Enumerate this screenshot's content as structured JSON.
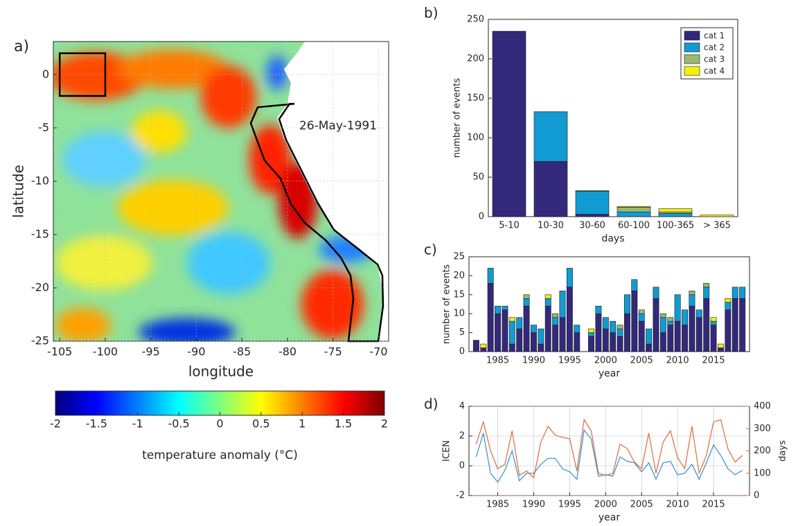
{
  "chart_data": [
    {
      "type": "map",
      "panel_label": "a)",
      "xlabel": "longitude",
      "ylabel": "latitude",
      "xlim": [
        -105.7,
        -68.9
      ],
      "ylim": [
        -25,
        3.1
      ],
      "xticks": [
        -105,
        -100,
        -95,
        -90,
        -85,
        -80,
        -75,
        -70
      ],
      "yticks": [
        -25,
        -20,
        -15,
        -10,
        -5,
        0
      ],
      "grid": true,
      "annotation": "26-May-1991",
      "box": {
        "lon": [
          -105,
          -100
        ],
        "lat": [
          -2,
          2
        ]
      },
      "colorbar": {
        "label": "temperature anomaly (°C)",
        "lim": [
          -2,
          2
        ],
        "ticks": [
          -2,
          -1.5,
          -1,
          -0.5,
          0,
          0.5,
          1,
          1.5,
          2
        ]
      }
    },
    {
      "type": "stacked-bar",
      "panel_label": "b)",
      "xlabel": "days",
      "ylabel": "number of events",
      "categories": [
        "5-10",
        "10-30",
        "30-60",
        "60-100",
        "100-365",
        "> 365"
      ],
      "series": [
        {
          "name": "cat 1",
          "color": "#33297b",
          "values": [
            235,
            70,
            3,
            0,
            0,
            0
          ]
        },
        {
          "name": "cat 2",
          "color": "#129bd2",
          "values": [
            0,
            63,
            29,
            6,
            4,
            0
          ]
        },
        {
          "name": "cat 3",
          "color": "#98b872",
          "values": [
            0,
            0,
            1,
            6,
            2,
            0
          ]
        },
        {
          "name": "cat 4",
          "color": "#f5ef0a",
          "values": [
            0,
            0,
            0,
            1,
            4,
            2
          ]
        }
      ],
      "ylim": [
        0,
        250
      ],
      "yticks": [
        0,
        50,
        100,
        150,
        200,
        250
      ],
      "legend": "upper right"
    },
    {
      "type": "stacked-bar",
      "panel_label": "c)",
      "xlabel": "year",
      "ylabel": "number of events",
      "x": [
        1982,
        1983,
        1984,
        1985,
        1986,
        1987,
        1988,
        1989,
        1990,
        1991,
        1992,
        1993,
        1994,
        1995,
        1996,
        1997,
        1998,
        1999,
        2000,
        2001,
        2002,
        2003,
        2004,
        2005,
        2006,
        2007,
        2008,
        2009,
        2010,
        2011,
        2012,
        2013,
        2014,
        2015,
        2016,
        2017,
        2018,
        2019
      ],
      "series": [
        {
          "color": "#33297b",
          "values": [
            3,
            1,
            18,
            10,
            11,
            2,
            6,
            12,
            5,
            2,
            12,
            7,
            9,
            17,
            5,
            0,
            4,
            10,
            6,
            5,
            4,
            10,
            16,
            8,
            2,
            14,
            5,
            7,
            8,
            7,
            12,
            9,
            14,
            7,
            1,
            11,
            14,
            14
          ]
        },
        {
          "color": "#129bd2",
          "values": [
            0,
            0,
            4,
            2,
            1,
            6,
            3,
            2,
            2,
            4,
            2,
            2,
            7,
            5,
            2,
            0,
            1,
            2,
            3,
            3,
            2,
            5,
            3,
            2,
            4,
            3,
            4,
            1,
            7,
            4,
            3,
            2,
            3,
            1,
            0,
            2,
            3,
            3
          ]
        },
        {
          "color": "#98b872",
          "values": [
            0,
            0,
            0,
            0,
            0,
            0,
            0,
            1,
            0,
            0,
            0,
            1,
            0,
            0,
            0,
            0,
            0,
            0,
            0,
            0,
            1,
            0,
            0,
            1,
            0,
            0,
            1,
            1,
            0,
            0,
            1,
            0,
            1,
            0,
            0,
            0,
            0,
            0
          ]
        },
        {
          "color": "#f5ef0a",
          "values": [
            0,
            1,
            0,
            0,
            0,
            1,
            0,
            0,
            0,
            0,
            1,
            0,
            0,
            0,
            0,
            0,
            1,
            0,
            0,
            0,
            0,
            0,
            0,
            0,
            0,
            0,
            0,
            0,
            0,
            0,
            0,
            0,
            0,
            1,
            1,
            1,
            0,
            0
          ]
        }
      ],
      "xlim": [
        1981,
        2020
      ],
      "xticks": [
        1985,
        1990,
        1995,
        2000,
        2005,
        2010,
        2015
      ],
      "ylim": [
        0,
        25
      ],
      "yticks": [
        0,
        5,
        10,
        15,
        20,
        25
      ]
    },
    {
      "type": "line",
      "panel_label": "d)",
      "xlabel": "year",
      "ylabel": "ICEN",
      "y2label": "days",
      "x": [
        1982,
        1983,
        1984,
        1985,
        1986,
        1987,
        1988,
        1989,
        1990,
        1991,
        1992,
        1993,
        1994,
        1995,
        1996,
        1997,
        1998,
        1999,
        2000,
        2001,
        2002,
        2003,
        2004,
        2005,
        2006,
        2007,
        2008,
        2009,
        2010,
        2011,
        2012,
        2013,
        2014,
        2015,
        2016,
        2017,
        2018,
        2019
      ],
      "series": [
        {
          "color": "#2f8fcf",
          "values": [
            0.6,
            2.2,
            -0.5,
            -1.1,
            -0.3,
            1.0,
            -1.0,
            -0.5,
            -0.5,
            0.1,
            0.5,
            0.5,
            -0.2,
            -0.4,
            -0.9,
            2.4,
            1.8,
            -0.7,
            -0.6,
            -0.7,
            0.6,
            0.3,
            0.2,
            -0.4,
            0.2,
            -0.9,
            0.2,
            0.3,
            -0.6,
            -0.5,
            0.1,
            -0.9,
            0.2,
            1.4,
            0.7,
            -0.2,
            -0.6,
            -0.3
          ]
        },
        {
          "color": "#e0683a",
          "axis": "y2",
          "values": [
            230,
            330,
            200,
            120,
            140,
            290,
            90,
            110,
            80,
            240,
            310,
            270,
            260,
            255,
            110,
            340,
            290,
            100,
            90,
            100,
            230,
            210,
            150,
            120,
            280,
            100,
            240,
            290,
            170,
            120,
            310,
            100,
            180,
            330,
            340,
            210,
            150,
            180
          ]
        }
      ],
      "xlim": [
        1981,
        2020
      ],
      "xticks": [
        1985,
        1990,
        1995,
        2000,
        2005,
        2010,
        2015
      ],
      "ylim": [
        -2,
        4
      ],
      "yticks": [
        -2,
        0,
        2,
        4
      ],
      "y2lim": [
        0,
        400
      ],
      "y2ticks": [
        0,
        100,
        200,
        300,
        400
      ],
      "grid": true
    }
  ]
}
